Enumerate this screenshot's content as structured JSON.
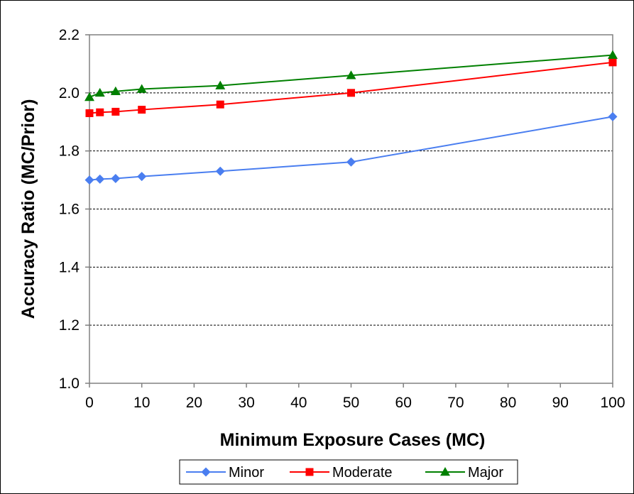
{
  "chart_data": {
    "type": "line",
    "title": "",
    "xlabel": "Minimum Exposure Cases (MC)",
    "ylabel": "Accuracy Ratio (MC/Prior)",
    "xlim": [
      0,
      100
    ],
    "ylim": [
      1.0,
      2.2
    ],
    "x_ticks": [
      "0",
      "10",
      "20",
      "30",
      "40",
      "50",
      "60",
      "70",
      "80",
      "90",
      "100"
    ],
    "y_ticks": [
      "1.0",
      "1.2",
      "1.4",
      "1.6",
      "1.8",
      "2.0",
      "2.2"
    ],
    "grid": "horizontal dashed",
    "legend_position": "bottom",
    "x": [
      0,
      2,
      5,
      10,
      25,
      50,
      100
    ],
    "series": [
      {
        "name": "Minor",
        "color": "#4a7ef0",
        "marker": "diamond",
        "values": [
          1.7,
          1.703,
          1.705,
          1.712,
          1.73,
          1.762,
          1.918
        ]
      },
      {
        "name": "Moderate",
        "color": "#ff0000",
        "marker": "square",
        "values": [
          1.93,
          1.933,
          1.935,
          1.942,
          1.96,
          2.0,
          2.105
        ]
      },
      {
        "name": "Major",
        "color": "#008000",
        "marker": "triangle",
        "values": [
          1.985,
          2.0,
          2.005,
          2.013,
          2.025,
          2.06,
          2.13
        ]
      }
    ]
  }
}
